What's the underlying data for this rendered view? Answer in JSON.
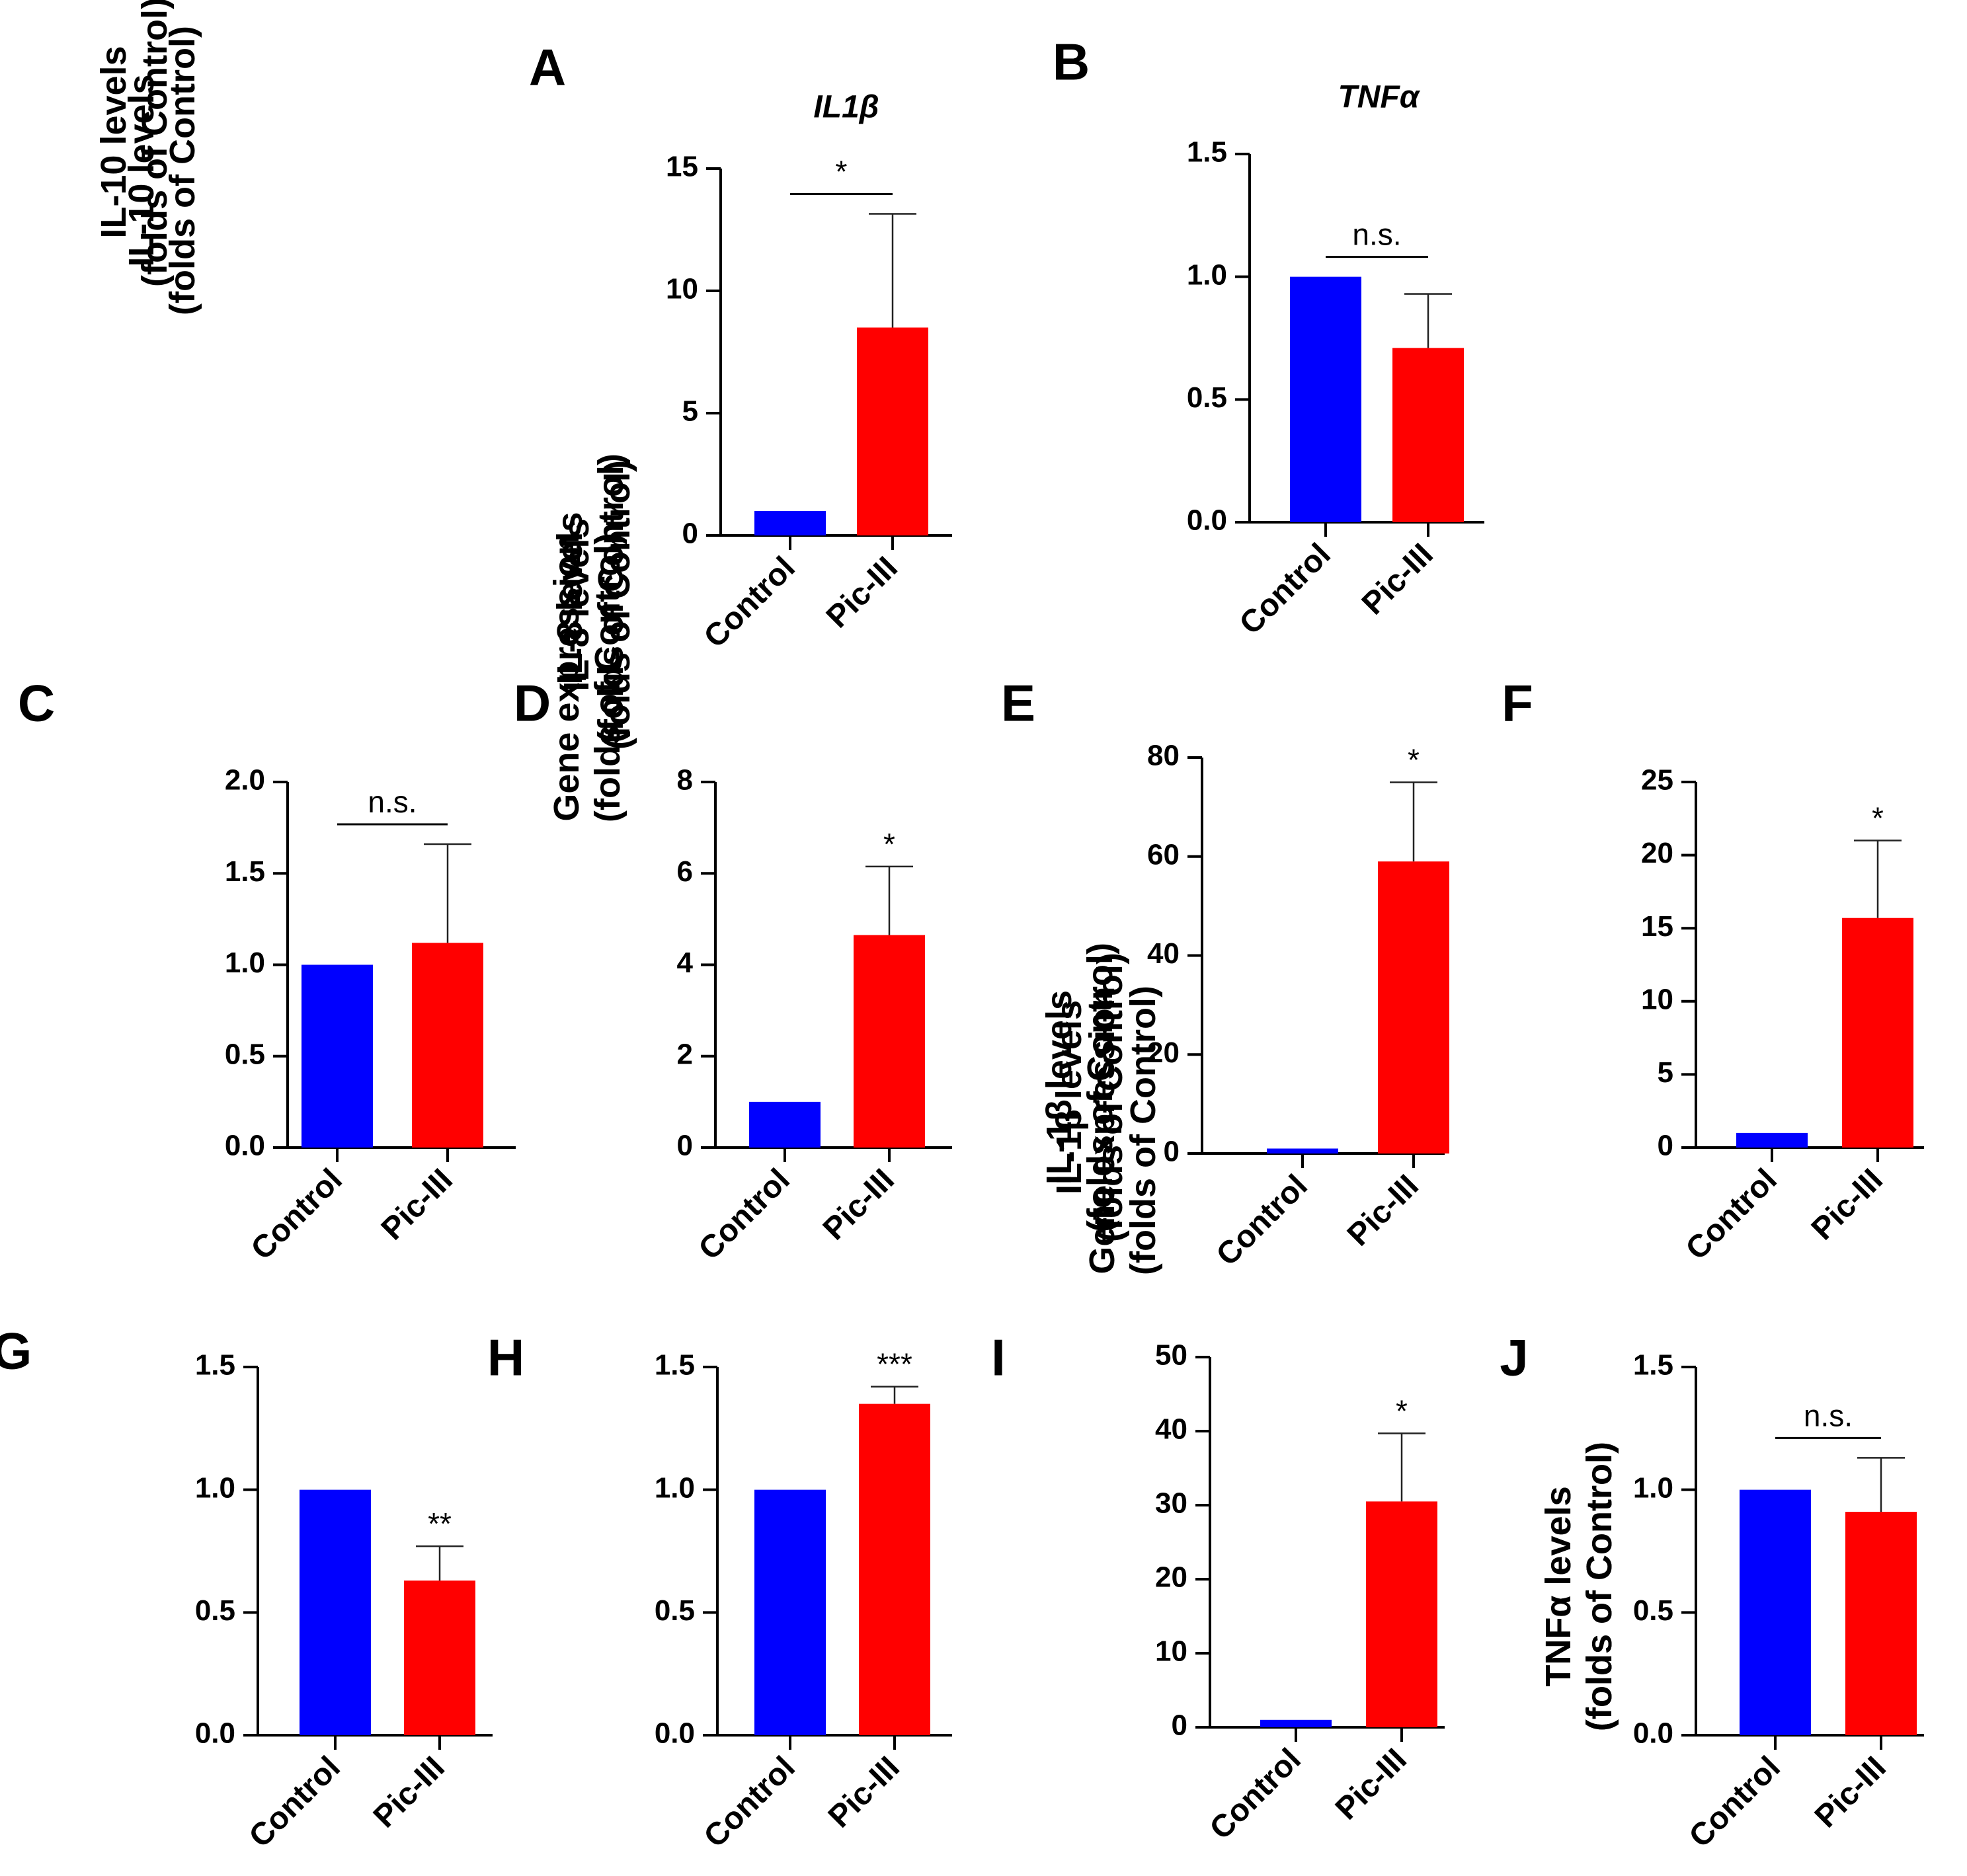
{
  "chart_data": [
    {
      "panel": "A",
      "type": "bar",
      "title": "IL1β",
      "ylabel": [
        "Gene expression",
        "(folds of Control)"
      ],
      "ylim": [
        0,
        15
      ],
      "yticks": [
        0,
        5,
        10,
        15
      ],
      "ytick_labels": [
        "0",
        "5",
        "10",
        "15"
      ],
      "categories": [
        "Control",
        "Pic-III"
      ],
      "values": [
        1.0,
        8.5
      ],
      "errors": [
        0,
        4.65
      ],
      "colors": [
        "#0000FF",
        "#FF0000"
      ],
      "significance": "*",
      "significance_style": "bracket"
    },
    {
      "panel": "B",
      "type": "bar",
      "title": "TNFα",
      "ylabel": [
        "Gene expression",
        "(folds of Control)"
      ],
      "ylim": [
        0,
        1.5
      ],
      "yticks": [
        0,
        0.5,
        1.0,
        1.5
      ],
      "ytick_labels": [
        "0.0",
        "0.5",
        "1.0",
        "1.5"
      ],
      "categories": [
        "Control",
        "Pic-III"
      ],
      "values": [
        1.0,
        0.71
      ],
      "errors": [
        0,
        0.22
      ],
      "colors": [
        "#0000FF",
        "#FF0000"
      ],
      "significance": "n.s.",
      "significance_style": "bracket"
    },
    {
      "panel": "C",
      "type": "bar",
      "title": "",
      "ylabel": [
        "IL-10 levels",
        "(folds of Control)"
      ],
      "ylim": [
        0,
        2.0
      ],
      "yticks": [
        0,
        0.5,
        1.0,
        1.5,
        2.0
      ],
      "ytick_labels": [
        "0.0",
        "0.5",
        "1.0",
        "1.5",
        "2.0"
      ],
      "categories": [
        "Control",
        "Pic-III"
      ],
      "values": [
        1.0,
        1.12
      ],
      "errors": [
        0,
        0.54
      ],
      "colors": [
        "#0000FF",
        "#FF0000"
      ],
      "significance": "n.s.",
      "significance_style": "bracket"
    },
    {
      "panel": "D",
      "type": "bar",
      "title": "",
      "ylabel": [
        "IL-8 levels",
        "(folds of Control)"
      ],
      "ylim": [
        0,
        8
      ],
      "yticks": [
        0,
        2,
        4,
        6,
        8
      ],
      "ytick_labels": [
        "0",
        "2",
        "4",
        "6",
        "8"
      ],
      "categories": [
        "Control",
        "Pic-III"
      ],
      "values": [
        1.0,
        4.65
      ],
      "errors": [
        0,
        1.5
      ],
      "colors": [
        "#0000FF",
        "#FF0000"
      ],
      "significance": "*",
      "significance_style": "above"
    },
    {
      "panel": "E",
      "type": "bar",
      "title": "",
      "ylabel": [
        "IL-1β levels",
        "(folds of Control)"
      ],
      "ylim": [
        0,
        80
      ],
      "yticks": [
        0,
        20,
        40,
        60,
        80
      ],
      "ytick_labels": [
        "0",
        "20",
        "40",
        "60",
        "80"
      ],
      "categories": [
        "Control",
        "Pic-III"
      ],
      "values": [
        1.0,
        59
      ],
      "errors": [
        0,
        16
      ],
      "colors": [
        "#0000FF",
        "#FF0000"
      ],
      "significance": "*",
      "significance_style": "above"
    },
    {
      "panel": "F",
      "type": "bar",
      "title": "",
      "ylabel": [
        "TNFα levels",
        "(folds of Control)"
      ],
      "ylim": [
        0,
        25
      ],
      "yticks": [
        0,
        5,
        10,
        15,
        20,
        25
      ],
      "ytick_labels": [
        "0",
        "5",
        "10",
        "15",
        "20",
        "25"
      ],
      "categories": [
        "Control",
        "Pic-III"
      ],
      "values": [
        1.0,
        15.7
      ],
      "errors": [
        0,
        5.3
      ],
      "colors": [
        "#0000FF",
        "#FF0000"
      ],
      "significance": "*",
      "significance_style": "above"
    },
    {
      "panel": "G",
      "type": "bar",
      "title": "",
      "ylabel": [
        "IL-10 levels",
        "(folds of Control)"
      ],
      "ylim": [
        0,
        1.5
      ],
      "yticks": [
        0,
        0.5,
        1.0,
        1.5
      ],
      "ytick_labels": [
        "0.0",
        "0.5",
        "1.0",
        "1.5"
      ],
      "categories": [
        "Control",
        "Pic-III"
      ],
      "values": [
        1.0,
        0.63
      ],
      "errors": [
        0,
        0.14
      ],
      "colors": [
        "#0000FF",
        "#FF0000"
      ],
      "significance": "**",
      "significance_style": "above"
    },
    {
      "panel": "H",
      "type": "bar",
      "title": "",
      "ylabel": [
        "IL-8 levels",
        "(folds of Control)"
      ],
      "ylim": [
        0,
        1.5
      ],
      "yticks": [
        0,
        0.5,
        1.0,
        1.5
      ],
      "ytick_labels": [
        "0.0",
        "0.5",
        "1.0",
        "1.5"
      ],
      "categories": [
        "Control",
        "Pic-III"
      ],
      "values": [
        1.0,
        1.35
      ],
      "errors": [
        0,
        0.07
      ],
      "colors": [
        "#0000FF",
        "#FF0000"
      ],
      "significance": "***",
      "significance_style": "above"
    },
    {
      "panel": "I",
      "type": "bar",
      "title": "",
      "ylabel": [
        "IL-1β levels",
        "(folds of Control)"
      ],
      "ylim": [
        0,
        50
      ],
      "yticks": [
        0,
        10,
        20,
        30,
        40,
        50
      ],
      "ytick_labels": [
        "0",
        "10",
        "20",
        "30",
        "40",
        "50"
      ],
      "categories": [
        "Control",
        "Pic-III"
      ],
      "values": [
        1.0,
        30.5
      ],
      "errors": [
        0,
        9.2
      ],
      "colors": [
        "#0000FF",
        "#FF0000"
      ],
      "significance": "*",
      "significance_style": "above"
    },
    {
      "panel": "J",
      "type": "bar",
      "title": "",
      "ylabel": [
        "TNFα  levels",
        "(folds of Control)"
      ],
      "ylim": [
        0,
        1.5
      ],
      "yticks": [
        0,
        0.5,
        1.0,
        1.5
      ],
      "ytick_labels": [
        "0.0",
        "0.5",
        "1.0",
        "1.5"
      ],
      "categories": [
        "Control",
        "Pic-III"
      ],
      "values": [
        1.0,
        0.91
      ],
      "errors": [
        0,
        0.22
      ],
      "colors": [
        "#0000FF",
        "#FF0000"
      ],
      "significance": "n.s.",
      "significance_style": "bracket"
    }
  ]
}
